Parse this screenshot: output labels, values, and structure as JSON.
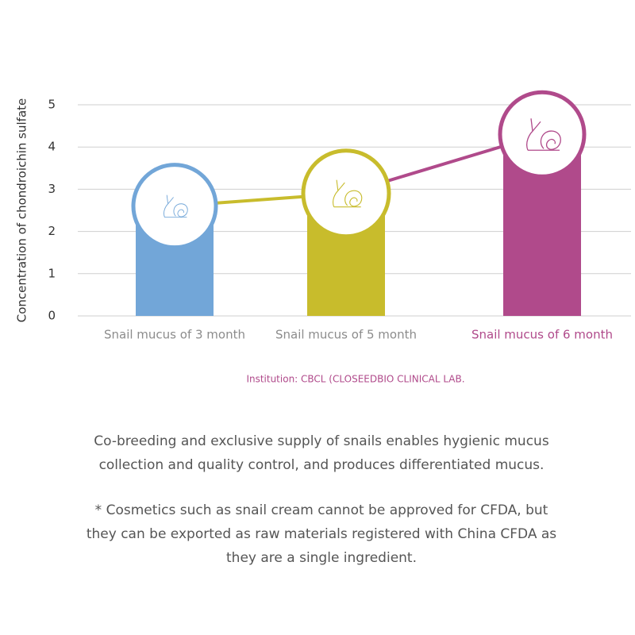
{
  "chart_data": {
    "type": "bar",
    "y_label": "Concentration of chondroichin sulfate",
    "categories": [
      "Snail mucus of 3 month",
      "Snail mucus of 5 month",
      "Snail mucus of 6 month"
    ],
    "values": [
      2.6,
      2.9,
      4.3
    ],
    "colors": [
      "#72a6d8",
      "#c8bc2c",
      "#b04a8b"
    ],
    "label_colors": [
      "#8c8c8c",
      "#8c8c8c",
      "#b04a8b"
    ],
    "ylim": [
      0,
      5
    ],
    "yticks": [
      0,
      1,
      2,
      3,
      4,
      5
    ],
    "grid": true,
    "source": "Institution: CBCL (CLOSEEDBIO CLINICAL LAB."
  },
  "text": {
    "paragraphs": [
      [
        "Co-breeding and exclusive supply of snails enables hygienic mucus",
        "collection and quality control, and produces differentiated mucus."
      ],
      [
        "* Cosmetics such as snail cream cannot be approved for CFDA, but",
        "they can be exported as raw materials registered with China CFDA as",
        "they are a single ingredient."
      ]
    ]
  }
}
